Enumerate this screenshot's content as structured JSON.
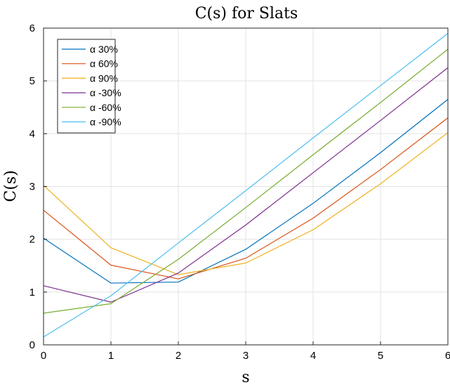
{
  "chart_data": {
    "type": "line",
    "title": "C(s) for Slats",
    "xlabel": "s",
    "ylabel": "C(s)",
    "xlim": [
      0,
      6
    ],
    "ylim": [
      0,
      6
    ],
    "xticks": [
      "0",
      "1",
      "2",
      "3",
      "4",
      "5",
      "6"
    ],
    "yticks": [
      "0",
      "1",
      "2",
      "3",
      "4",
      "5",
      "6"
    ],
    "grid": true,
    "legend_position": "top-left",
    "x": [
      0,
      1,
      2,
      3,
      4,
      5,
      6
    ],
    "series": [
      {
        "name": "α 30%",
        "color": "#0072BD",
        "values": [
          2.02,
          1.17,
          1.19,
          1.81,
          2.68,
          3.64,
          4.65
        ]
      },
      {
        "name": "α 60%",
        "color": "#D95319",
        "values": [
          2.55,
          1.51,
          1.25,
          1.64,
          2.4,
          3.32,
          4.3
        ]
      },
      {
        "name": "α 90%",
        "color": "#EDB120",
        "values": [
          3.02,
          1.84,
          1.33,
          1.55,
          2.18,
          3.05,
          4.02
        ]
      },
      {
        "name": "α -30%",
        "color": "#7E2F8E",
        "values": [
          1.12,
          0.81,
          1.36,
          2.27,
          3.26,
          4.25,
          5.25
        ]
      },
      {
        "name": "α -60%",
        "color": "#77AC30",
        "values": [
          0.6,
          0.78,
          1.62,
          2.6,
          3.6,
          4.59,
          5.6
        ]
      },
      {
        "name": "α -90%",
        "color": "#4DBEEE",
        "values": [
          0.15,
          0.93,
          1.93,
          2.92,
          3.92,
          4.91,
          5.9
        ]
      }
    ]
  }
}
